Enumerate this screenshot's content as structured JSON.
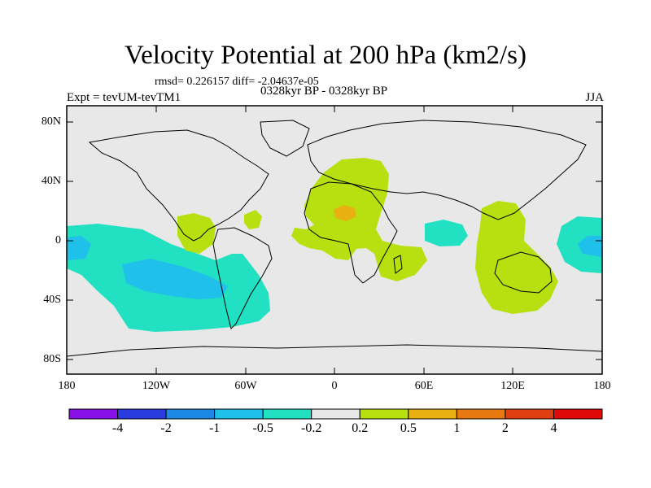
{
  "title": "Velocity Potential at 200 hPa (km2/s)",
  "stats": "rmsd= 0.226157 diff= -2.04637e-05",
  "expt": "Expt = tevUM-tevTM1",
  "period": "0328kyr BP - 0328kyr BP",
  "season": "JJA",
  "lat_labels": [
    "80N",
    "40N",
    "0",
    "40S",
    "80S"
  ],
  "lon_labels": [
    "180",
    "120W",
    "60W",
    "0",
    "60E",
    "120E",
    "180"
  ],
  "colorbar": {
    "labels": [
      "-4",
      "-2",
      "-1",
      "-0.5",
      "-0.2",
      "0.2",
      "0.5",
      "1",
      "2",
      "4"
    ],
    "colors": [
      "#8a10e8",
      "#2a3ce0",
      "#1e88e6",
      "#1fc0ea",
      "#22e0c2",
      "#e8e8e8",
      "#b8e010",
      "#e8b010",
      "#e87810",
      "#e04010",
      "#e00808"
    ]
  },
  "colors": {
    "background": "#e8e8e8",
    "neg_weak": "#22e0c2",
    "neg_mid": "#1fc0ea",
    "pos_weak": "#b8e010",
    "pos_mid": "#e8b010"
  }
}
